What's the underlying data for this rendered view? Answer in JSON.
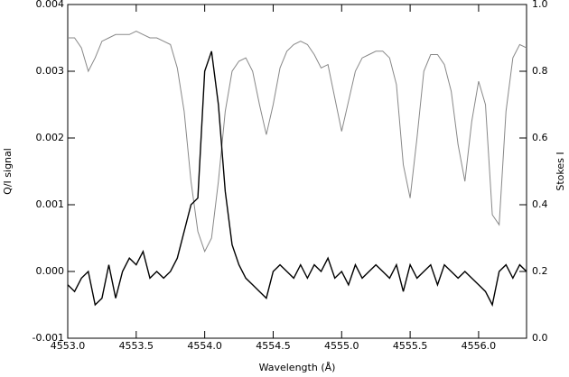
{
  "chart_data": {
    "type": "line",
    "xlabel": "Wavelength (Å)",
    "ylabel": "Q/I signal",
    "y2label": "Stokes I",
    "xlim": [
      4553.0,
      4556.35
    ],
    "xticks": [
      {
        "value": 4553.0,
        "label": "4553.0"
      },
      {
        "value": 4553.5,
        "label": "4553.5"
      },
      {
        "value": 4554.0,
        "label": "4554.0"
      },
      {
        "value": 4554.5,
        "label": "4554.5"
      },
      {
        "value": 4555.0,
        "label": "4555.0"
      },
      {
        "value": 4555.5,
        "label": "4555.5"
      },
      {
        "value": 4556.0,
        "label": "4556.0"
      }
    ],
    "ylim": [
      -0.001,
      0.004
    ],
    "yticks": [
      {
        "value": -0.001,
        "label": "-0.001"
      },
      {
        "value": 0,
        "label": "0.000"
      },
      {
        "value": 0.001,
        "label": "0.001"
      },
      {
        "value": 0.002,
        "label": "0.002"
      },
      {
        "value": 0.003,
        "label": "0.003"
      },
      {
        "value": 0.004,
        "label": "0.004"
      }
    ],
    "y2lim": [
      0,
      1
    ],
    "y2ticks": [
      {
        "value": 0,
        "label": "0.0"
      },
      {
        "value": 0.2,
        "label": "0.2"
      },
      {
        "value": 0.4,
        "label": "0.4"
      },
      {
        "value": 0.6,
        "label": "0.6"
      },
      {
        "value": 0.8,
        "label": "0.8"
      },
      {
        "value": 1,
        "label": "1.0"
      }
    ],
    "x": [
      4553.0,
      4553.05,
      4553.1,
      4553.15,
      4553.2,
      4553.25,
      4553.3,
      4553.35,
      4553.4,
      4553.45,
      4553.5,
      4553.55,
      4553.6,
      4553.65,
      4553.7,
      4553.75,
      4553.8,
      4553.85,
      4553.9,
      4553.95,
      4554.0,
      4554.05,
      4554.1,
      4554.15,
      4554.2,
      4554.25,
      4554.3,
      4554.35,
      4554.4,
      4554.45,
      4554.5,
      4554.55,
      4554.6,
      4554.65,
      4554.7,
      4554.75,
      4554.8,
      4554.85,
      4554.9,
      4554.95,
      4555.0,
      4555.05,
      4555.1,
      4555.15,
      4555.2,
      4555.25,
      4555.3,
      4555.35,
      4555.4,
      4555.45,
      4555.5,
      4555.55,
      4555.6,
      4555.65,
      4555.7,
      4555.75,
      4555.8,
      4555.85,
      4555.9,
      4555.95,
      4556.0,
      4556.05,
      4556.1,
      4556.15,
      4556.2,
      4556.25,
      4556.3,
      4556.35
    ],
    "series": [
      {
        "color": "#888888",
        "axis": "y2",
        "values": [
          0.9,
          0.9,
          0.87,
          0.8,
          0.84,
          0.89,
          0.9,
          0.91,
          0.91,
          0.91,
          0.92,
          0.91,
          0.9,
          0.9,
          0.89,
          0.88,
          0.81,
          0.68,
          0.47,
          0.32,
          0.26,
          0.3,
          0.47,
          0.68,
          0.8,
          0.83,
          0.84,
          0.8,
          0.7,
          0.61,
          0.7,
          0.81,
          0.86,
          0.88,
          0.89,
          0.88,
          0.85,
          0.81,
          0.82,
          0.72,
          0.62,
          0.71,
          0.8,
          0.84,
          0.85,
          0.86,
          0.86,
          0.84,
          0.76,
          0.52,
          0.42,
          0.6,
          0.8,
          0.85,
          0.85,
          0.82,
          0.74,
          0.58,
          0.47,
          0.65,
          0.77,
          0.7,
          0.37,
          0.34,
          0.68,
          0.84,
          0.88,
          0.87
        ]
      },
      {
        "color": "#000000",
        "values": [
          -0.0002,
          -0.0003,
          -0.0001,
          0.0,
          -0.0005,
          -0.0004,
          0.0001,
          -0.0004,
          0.0,
          0.0002,
          0.0001,
          0.0003,
          -0.0001,
          0.0,
          -0.0001,
          0.0,
          0.0002,
          0.0006,
          0.001,
          0.0011,
          0.003,
          0.0033,
          0.0025,
          0.0012,
          0.0004,
          0.0001,
          -0.0001,
          -0.0002,
          -0.0003,
          -0.0004,
          0.0,
          0.0001,
          0.0,
          -0.0001,
          0.0001,
          -0.0001,
          0.0001,
          0.0,
          0.0002,
          -0.0001,
          0.0,
          -0.0002,
          0.0001,
          -0.0001,
          0.0,
          0.0001,
          0.0,
          -0.0001,
          0.0001,
          -0.0003,
          0.0001,
          -0.0001,
          0.0,
          0.0001,
          -0.0002,
          0.0001,
          0.0,
          -0.0001,
          0.0,
          -0.0001,
          -0.0002,
          -0.0003,
          -0.0005,
          0.0,
          0.0001,
          -0.0001,
          0.0001,
          0.0
        ]
      }
    ]
  }
}
